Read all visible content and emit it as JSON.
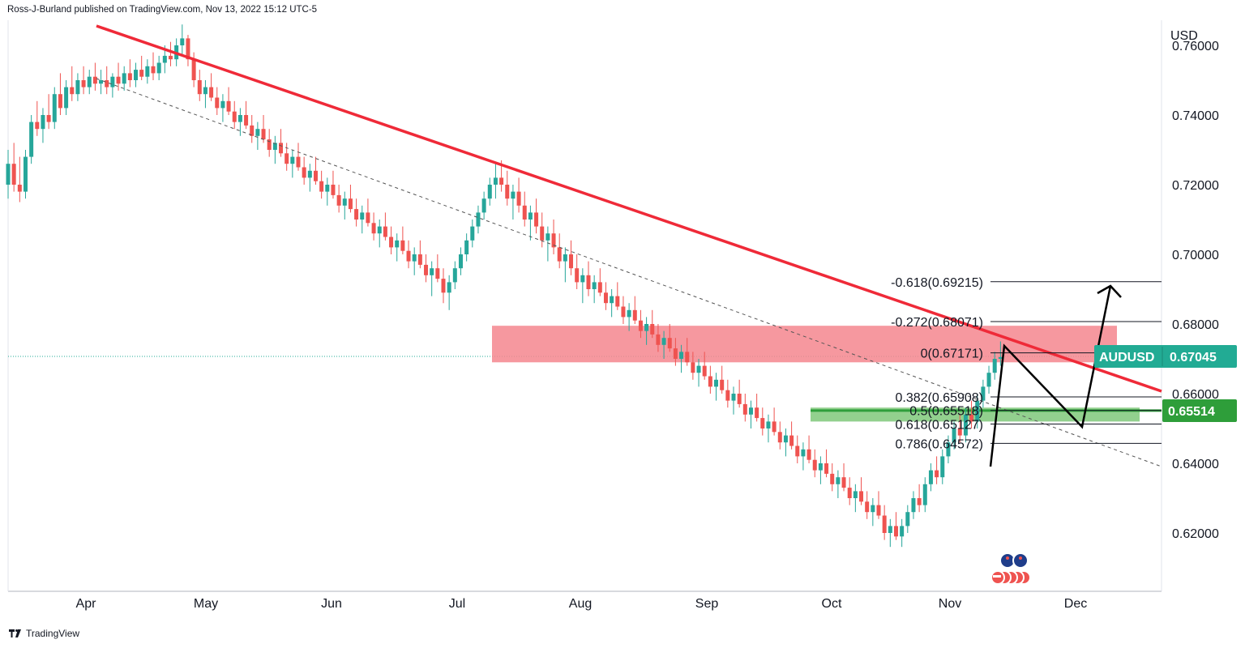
{
  "header": {
    "text": "Ross-J-Burland published on TradingView.com, Nov 13, 2022 15:12 UTC-5"
  },
  "footer": {
    "brand": "TradingView"
  },
  "colors": {
    "bull": "#26a69a",
    "bear": "#ef5350",
    "trendline": "#ef2a38",
    "supply_zone": "#f5868e",
    "demand_zone": "#7fc87a",
    "symbol_tag": "#22ab94",
    "level_tag": "#2e9e3a"
  },
  "chart_data": {
    "type": "candlestick",
    "title": "",
    "xlabel": "",
    "ylabel": "USD",
    "symbol": "AUDUSD",
    "last_price": "0.67045",
    "marked_level": "0.65514",
    "ylim": [
      0.611,
      0.765
    ],
    "y_ticks": [
      "0.76000",
      "0.74000",
      "0.72000",
      "0.70000",
      "0.68000",
      "0.66000",
      "0.64000",
      "0.62000"
    ],
    "x_ticks": [
      "Apr",
      "May",
      "Jun",
      "Jul",
      "Aug",
      "Sep",
      "Oct",
      "Nov",
      "Dec"
    ],
    "fib_levels": [
      {
        "label": "-0.618(0.69215)",
        "price": 0.69215
      },
      {
        "label": "-0.272(0.68071)",
        "price": 0.68071
      },
      {
        "label": "0(0.67171)",
        "price": 0.67171
      },
      {
        "label": "0.382(0.65908)",
        "price": 0.65908
      },
      {
        "label": "0.5(0.65518)",
        "price": 0.65518
      },
      {
        "label": "0.618(0.65127)",
        "price": 0.65127
      },
      {
        "label": "0.786(0.64572)",
        "price": 0.64572
      }
    ],
    "zones": [
      {
        "name": "supply",
        "from_day": 127,
        "to_day": 372,
        "low": 0.669,
        "high": 0.6795
      },
      {
        "name": "demand",
        "from_day": 209,
        "to_day": 378,
        "low": 0.652,
        "high": 0.656
      }
    ],
    "trendline": {
      "from": {
        "day": 31,
        "price": 0.7638
      },
      "to": {
        "day": 359,
        "price": 0.6614
      }
    },
    "dashed_trendline": {
      "from": {
        "day": 31,
        "price": 0.7513
      },
      "to": {
        "day": 365,
        "price": 0.638
      }
    },
    "projection": [
      {
        "day": 364,
        "price": 0.6392
      },
      {
        "day": 367,
        "price": 0.6723
      },
      {
        "day": 388,
        "price": 0.651
      },
      {
        "day": 396,
        "price": 0.6918
      }
    ],
    "candles": [
      [
        0,
        0.72,
        0.73,
        0.716,
        0.726
      ],
      [
        1,
        0.726,
        0.732,
        0.718,
        0.72
      ],
      [
        2,
        0.72,
        0.728,
        0.715,
        0.718
      ],
      [
        3,
        0.718,
        0.73,
        0.716,
        0.728
      ],
      [
        4,
        0.728,
        0.74,
        0.726,
        0.738
      ],
      [
        5,
        0.738,
        0.744,
        0.734,
        0.736
      ],
      [
        6,
        0.736,
        0.742,
        0.732,
        0.74
      ],
      [
        7,
        0.74,
        0.746,
        0.736,
        0.738
      ],
      [
        8,
        0.738,
        0.748,
        0.736,
        0.746
      ],
      [
        9,
        0.746,
        0.752,
        0.74,
        0.742
      ],
      [
        10,
        0.742,
        0.75,
        0.74,
        0.748
      ],
      [
        11,
        0.748,
        0.754,
        0.744,
        0.746
      ],
      [
        12,
        0.746,
        0.752,
        0.744,
        0.75
      ],
      [
        13,
        0.75,
        0.754,
        0.746,
        0.748
      ],
      [
        14,
        0.748,
        0.753,
        0.746,
        0.751
      ],
      [
        15,
        0.751,
        0.755,
        0.747,
        0.749
      ],
      [
        16,
        0.749,
        0.753,
        0.746,
        0.75
      ],
      [
        17,
        0.75,
        0.754,
        0.746,
        0.748
      ],
      [
        18,
        0.748,
        0.752,
        0.745,
        0.751
      ],
      [
        19,
        0.751,
        0.755,
        0.747,
        0.749
      ],
      [
        20,
        0.749,
        0.754,
        0.747,
        0.752
      ],
      [
        21,
        0.752,
        0.756,
        0.748,
        0.75
      ],
      [
        22,
        0.75,
        0.755,
        0.748,
        0.753
      ],
      [
        23,
        0.753,
        0.757,
        0.75,
        0.751
      ],
      [
        24,
        0.751,
        0.756,
        0.749,
        0.754
      ],
      [
        25,
        0.754,
        0.758,
        0.75,
        0.752
      ],
      [
        26,
        0.752,
        0.757,
        0.75,
        0.755
      ],
      [
        27,
        0.755,
        0.76,
        0.752,
        0.757
      ],
      [
        28,
        0.757,
        0.761,
        0.754,
        0.756
      ],
      [
        29,
        0.756,
        0.762,
        0.754,
        0.76
      ],
      [
        30,
        0.76,
        0.766,
        0.757,
        0.762
      ],
      [
        31,
        0.762,
        0.763,
        0.754,
        0.756
      ],
      [
        32,
        0.756,
        0.758,
        0.748,
        0.75
      ],
      [
        33,
        0.75,
        0.753,
        0.744,
        0.746
      ],
      [
        34,
        0.746,
        0.75,
        0.742,
        0.748
      ],
      [
        35,
        0.748,
        0.752,
        0.744,
        0.745
      ],
      [
        36,
        0.745,
        0.748,
        0.74,
        0.742
      ],
      [
        37,
        0.742,
        0.746,
        0.738,
        0.744
      ],
      [
        38,
        0.744,
        0.748,
        0.74,
        0.741
      ],
      [
        39,
        0.741,
        0.744,
        0.736,
        0.738
      ],
      [
        40,
        0.738,
        0.742,
        0.734,
        0.74
      ],
      [
        41,
        0.74,
        0.744,
        0.736,
        0.737
      ],
      [
        42,
        0.737,
        0.74,
        0.732,
        0.734
      ],
      [
        43,
        0.734,
        0.738,
        0.73,
        0.736
      ],
      [
        44,
        0.736,
        0.74,
        0.732,
        0.733
      ],
      [
        45,
        0.733,
        0.736,
        0.728,
        0.73
      ],
      [
        46,
        0.73,
        0.734,
        0.726,
        0.732
      ],
      [
        47,
        0.732,
        0.736,
        0.728,
        0.729
      ],
      [
        48,
        0.729,
        0.732,
        0.724,
        0.726
      ],
      [
        49,
        0.726,
        0.73,
        0.722,
        0.728
      ],
      [
        50,
        0.728,
        0.732,
        0.724,
        0.725
      ],
      [
        51,
        0.725,
        0.728,
        0.72,
        0.722
      ],
      [
        52,
        0.722,
        0.726,
        0.718,
        0.724
      ],
      [
        53,
        0.724,
        0.728,
        0.72,
        0.721
      ],
      [
        54,
        0.721,
        0.724,
        0.716,
        0.718
      ],
      [
        55,
        0.718,
        0.722,
        0.714,
        0.72
      ],
      [
        56,
        0.72,
        0.724,
        0.716,
        0.717
      ],
      [
        57,
        0.717,
        0.72,
        0.712,
        0.714
      ],
      [
        58,
        0.714,
        0.718,
        0.71,
        0.716
      ],
      [
        59,
        0.716,
        0.72,
        0.712,
        0.713
      ],
      [
        60,
        0.713,
        0.716,
        0.708,
        0.71
      ],
      [
        61,
        0.71,
        0.714,
        0.706,
        0.712
      ],
      [
        62,
        0.712,
        0.716,
        0.708,
        0.709
      ],
      [
        63,
        0.709,
        0.712,
        0.704,
        0.706
      ],
      [
        64,
        0.706,
        0.71,
        0.702,
        0.708
      ],
      [
        65,
        0.708,
        0.712,
        0.704,
        0.705
      ],
      [
        66,
        0.705,
        0.708,
        0.7,
        0.702
      ],
      [
        67,
        0.702,
        0.706,
        0.698,
        0.704
      ],
      [
        68,
        0.704,
        0.708,
        0.7,
        0.701
      ],
      [
        69,
        0.701,
        0.704,
        0.696,
        0.698
      ],
      [
        70,
        0.698,
        0.702,
        0.694,
        0.7
      ],
      [
        71,
        0.7,
        0.704,
        0.696,
        0.697
      ],
      [
        72,
        0.697,
        0.7,
        0.692,
        0.694
      ],
      [
        73,
        0.694,
        0.698,
        0.688,
        0.696
      ],
      [
        74,
        0.696,
        0.7,
        0.692,
        0.693
      ],
      [
        75,
        0.693,
        0.696,
        0.686,
        0.689
      ],
      [
        76,
        0.689,
        0.694,
        0.684,
        0.692
      ],
      [
        77,
        0.692,
        0.698,
        0.69,
        0.696
      ],
      [
        78,
        0.696,
        0.702,
        0.694,
        0.7
      ],
      [
        79,
        0.7,
        0.706,
        0.698,
        0.704
      ],
      [
        80,
        0.704,
        0.71,
        0.702,
        0.708
      ],
      [
        81,
        0.708,
        0.714,
        0.706,
        0.712
      ],
      [
        82,
        0.712,
        0.718,
        0.71,
        0.716
      ],
      [
        83,
        0.716,
        0.722,
        0.714,
        0.72
      ],
      [
        84,
        0.72,
        0.726,
        0.716,
        0.722
      ],
      [
        85,
        0.722,
        0.727,
        0.718,
        0.72
      ],
      [
        86,
        0.72,
        0.724,
        0.714,
        0.716
      ],
      [
        87,
        0.716,
        0.72,
        0.71,
        0.718
      ],
      [
        88,
        0.718,
        0.722,
        0.712,
        0.714
      ],
      [
        89,
        0.714,
        0.718,
        0.708,
        0.71
      ],
      [
        90,
        0.71,
        0.714,
        0.704,
        0.712
      ],
      [
        91,
        0.712,
        0.716,
        0.706,
        0.708
      ],
      [
        92,
        0.708,
        0.712,
        0.702,
        0.704
      ],
      [
        93,
        0.704,
        0.708,
        0.698,
        0.706
      ],
      [
        94,
        0.706,
        0.71,
        0.7,
        0.702
      ],
      [
        95,
        0.702,
        0.706,
        0.696,
        0.698
      ],
      [
        96,
        0.698,
        0.702,
        0.692,
        0.7
      ],
      [
        97,
        0.7,
        0.704,
        0.694,
        0.696
      ],
      [
        98,
        0.696,
        0.7,
        0.69,
        0.692
      ],
      [
        99,
        0.692,
        0.696,
        0.686,
        0.694
      ],
      [
        100,
        0.694,
        0.698,
        0.688,
        0.69
      ],
      [
        101,
        0.69,
        0.694,
        0.686,
        0.692
      ],
      [
        102,
        0.692,
        0.696,
        0.688,
        0.689
      ],
      [
        103,
        0.689,
        0.692,
        0.684,
        0.686
      ],
      [
        104,
        0.686,
        0.69,
        0.682,
        0.688
      ],
      [
        105,
        0.688,
        0.692,
        0.684,
        0.685
      ],
      [
        106,
        0.685,
        0.688,
        0.68,
        0.682
      ],
      [
        107,
        0.682,
        0.686,
        0.678,
        0.684
      ],
      [
        108,
        0.684,
        0.688,
        0.68,
        0.681
      ],
      [
        109,
        0.681,
        0.684,
        0.676,
        0.678
      ],
      [
        110,
        0.678,
        0.682,
        0.674,
        0.68
      ],
      [
        111,
        0.68,
        0.684,
        0.676,
        0.677
      ],
      [
        112,
        0.677,
        0.68,
        0.672,
        0.674
      ],
      [
        113,
        0.674,
        0.678,
        0.67,
        0.676
      ],
      [
        114,
        0.676,
        0.68,
        0.672,
        0.673
      ],
      [
        115,
        0.673,
        0.676,
        0.668,
        0.67
      ],
      [
        116,
        0.67,
        0.674,
        0.666,
        0.672
      ],
      [
        117,
        0.672,
        0.676,
        0.668,
        0.669
      ],
      [
        118,
        0.669,
        0.672,
        0.664,
        0.666
      ],
      [
        119,
        0.666,
        0.67,
        0.662,
        0.668
      ],
      [
        120,
        0.668,
        0.672,
        0.664,
        0.665
      ],
      [
        121,
        0.665,
        0.668,
        0.66,
        0.662
      ],
      [
        122,
        0.662,
        0.666,
        0.658,
        0.664
      ],
      [
        123,
        0.664,
        0.668,
        0.66,
        0.661
      ],
      [
        124,
        0.661,
        0.664,
        0.656,
        0.658
      ],
      [
        125,
        0.658,
        0.662,
        0.654,
        0.66
      ],
      [
        126,
        0.66,
        0.664,
        0.656,
        0.657
      ],
      [
        127,
        0.657,
        0.66,
        0.652,
        0.654
      ],
      [
        128,
        0.654,
        0.658,
        0.65,
        0.656
      ],
      [
        129,
        0.656,
        0.66,
        0.652,
        0.653
      ],
      [
        130,
        0.653,
        0.656,
        0.648,
        0.65
      ],
      [
        131,
        0.65,
        0.654,
        0.646,
        0.652
      ],
      [
        132,
        0.652,
        0.656,
        0.648,
        0.649
      ],
      [
        133,
        0.649,
        0.652,
        0.644,
        0.646
      ],
      [
        134,
        0.646,
        0.65,
        0.642,
        0.648
      ],
      [
        135,
        0.648,
        0.652,
        0.644,
        0.645
      ],
      [
        136,
        0.645,
        0.648,
        0.64,
        0.642
      ],
      [
        137,
        0.642,
        0.646,
        0.638,
        0.644
      ],
      [
        138,
        0.644,
        0.648,
        0.64,
        0.641
      ],
      [
        139,
        0.641,
        0.644,
        0.636,
        0.638
      ],
      [
        140,
        0.638,
        0.642,
        0.634,
        0.64
      ],
      [
        141,
        0.64,
        0.644,
        0.636,
        0.637
      ],
      [
        142,
        0.637,
        0.64,
        0.632,
        0.634
      ],
      [
        143,
        0.634,
        0.638,
        0.63,
        0.636
      ],
      [
        144,
        0.636,
        0.64,
        0.632,
        0.633
      ],
      [
        145,
        0.633,
        0.636,
        0.628,
        0.63
      ],
      [
        146,
        0.63,
        0.634,
        0.626,
        0.632
      ],
      [
        147,
        0.632,
        0.636,
        0.628,
        0.629
      ],
      [
        148,
        0.629,
        0.632,
        0.624,
        0.626
      ],
      [
        149,
        0.626,
        0.63,
        0.622,
        0.628
      ],
      [
        150,
        0.628,
        0.632,
        0.624,
        0.625
      ],
      [
        151,
        0.625,
        0.628,
        0.618,
        0.62
      ],
      [
        152,
        0.62,
        0.624,
        0.616,
        0.622
      ],
      [
        153,
        0.622,
        0.626,
        0.618,
        0.619
      ],
      [
        154,
        0.619,
        0.624,
        0.616,
        0.622
      ],
      [
        155,
        0.622,
        0.628,
        0.62,
        0.626
      ],
      [
        156,
        0.626,
        0.632,
        0.624,
        0.63
      ],
      [
        157,
        0.63,
        0.634,
        0.626,
        0.628
      ],
      [
        158,
        0.628,
        0.636,
        0.626,
        0.634
      ],
      [
        159,
        0.634,
        0.64,
        0.632,
        0.638
      ],
      [
        160,
        0.638,
        0.642,
        0.634,
        0.636
      ],
      [
        161,
        0.636,
        0.644,
        0.634,
        0.642
      ],
      [
        162,
        0.642,
        0.648,
        0.64,
        0.646
      ],
      [
        163,
        0.646,
        0.652,
        0.644,
        0.65
      ],
      [
        164,
        0.65,
        0.654,
        0.646,
        0.648
      ],
      [
        165,
        0.648,
        0.656,
        0.646,
        0.654
      ],
      [
        166,
        0.654,
        0.658,
        0.65,
        0.652
      ],
      [
        167,
        0.652,
        0.66,
        0.65,
        0.658
      ],
      [
        168,
        0.658,
        0.664,
        0.656,
        0.662
      ],
      [
        169,
        0.662,
        0.668,
        0.66,
        0.666
      ],
      [
        170,
        0.666,
        0.672,
        0.664,
        0.67
      ],
      [
        171,
        0.67,
        0.675,
        0.668,
        0.6705
      ]
    ]
  }
}
